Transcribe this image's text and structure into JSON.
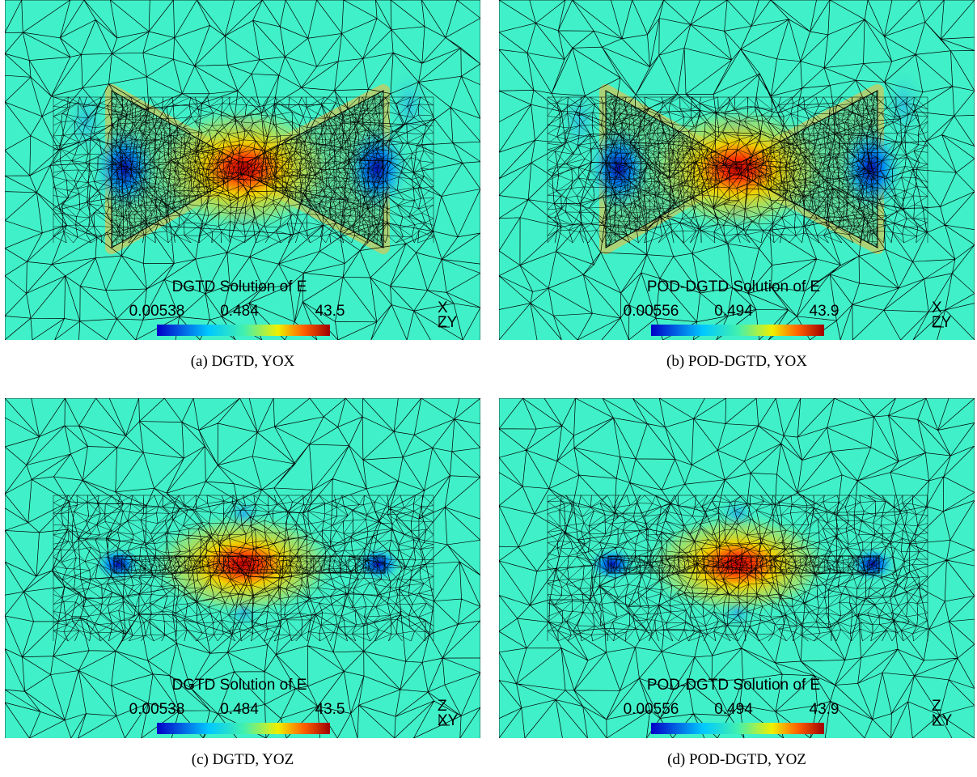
{
  "panels": [
    {
      "title": "DGTD Solution of E",
      "colorbar": {
        "min": 0.00538,
        "mid": 0.484,
        "max": 43.5
      },
      "triad": {
        "up": "X",
        "base": "ZY"
      },
      "caption": "(a) DGTD, YOX"
    },
    {
      "title": "POD-DGTD Solution of E",
      "colorbar": {
        "min": 0.00556,
        "mid": 0.494,
        "max": 43.9
      },
      "triad": {
        "up": "X",
        "base": "ZY"
      },
      "caption": "(b) POD-DGTD, YOX"
    },
    {
      "title": "DGTD Solution of E",
      "colorbar": {
        "min": 0.00538,
        "mid": 0.484,
        "max": 43.5
      },
      "triad": {
        "up": "Z",
        "base": "XY"
      },
      "caption": "(c) DGTD, YOZ"
    },
    {
      "title": "POD-DGTD Solution of E",
      "colorbar": {
        "min": 0.00556,
        "mid": 0.494,
        "max": 43.9
      },
      "triad": {
        "up": "Z",
        "base": "XY"
      },
      "caption": "(d) POD-DGTD, YOZ"
    }
  ]
}
